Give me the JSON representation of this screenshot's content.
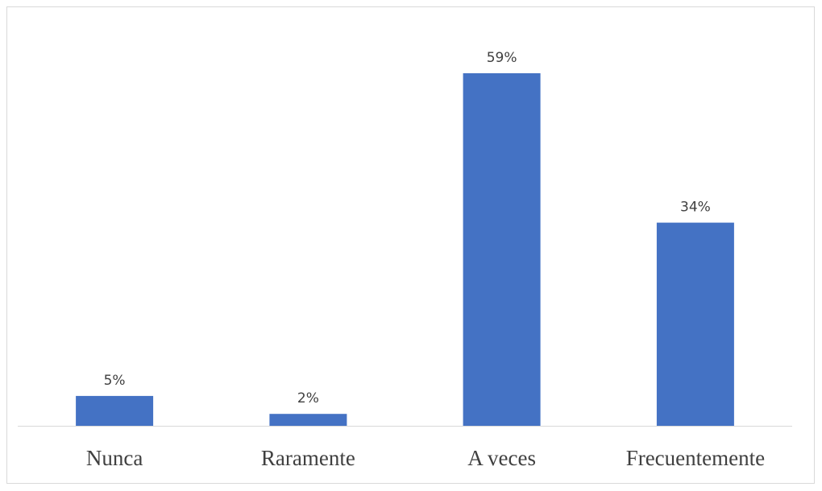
{
  "chart_data": {
    "type": "bar",
    "title": "",
    "xlabel": "",
    "ylabel": "",
    "categories": [
      "Nunca",
      "Raramente",
      "A veces",
      "Frecuentemente"
    ],
    "values": [
      5,
      2,
      59,
      34
    ],
    "data_labels": [
      "5%",
      "2%",
      "59%",
      "34%"
    ],
    "ylim": [
      0,
      59
    ],
    "grid": false,
    "legend": "none",
    "colors": {
      "bar": "#4472C4",
      "axis": "#D9D9D9",
      "border": "#D9D9D9",
      "label_text": "#404040"
    }
  }
}
